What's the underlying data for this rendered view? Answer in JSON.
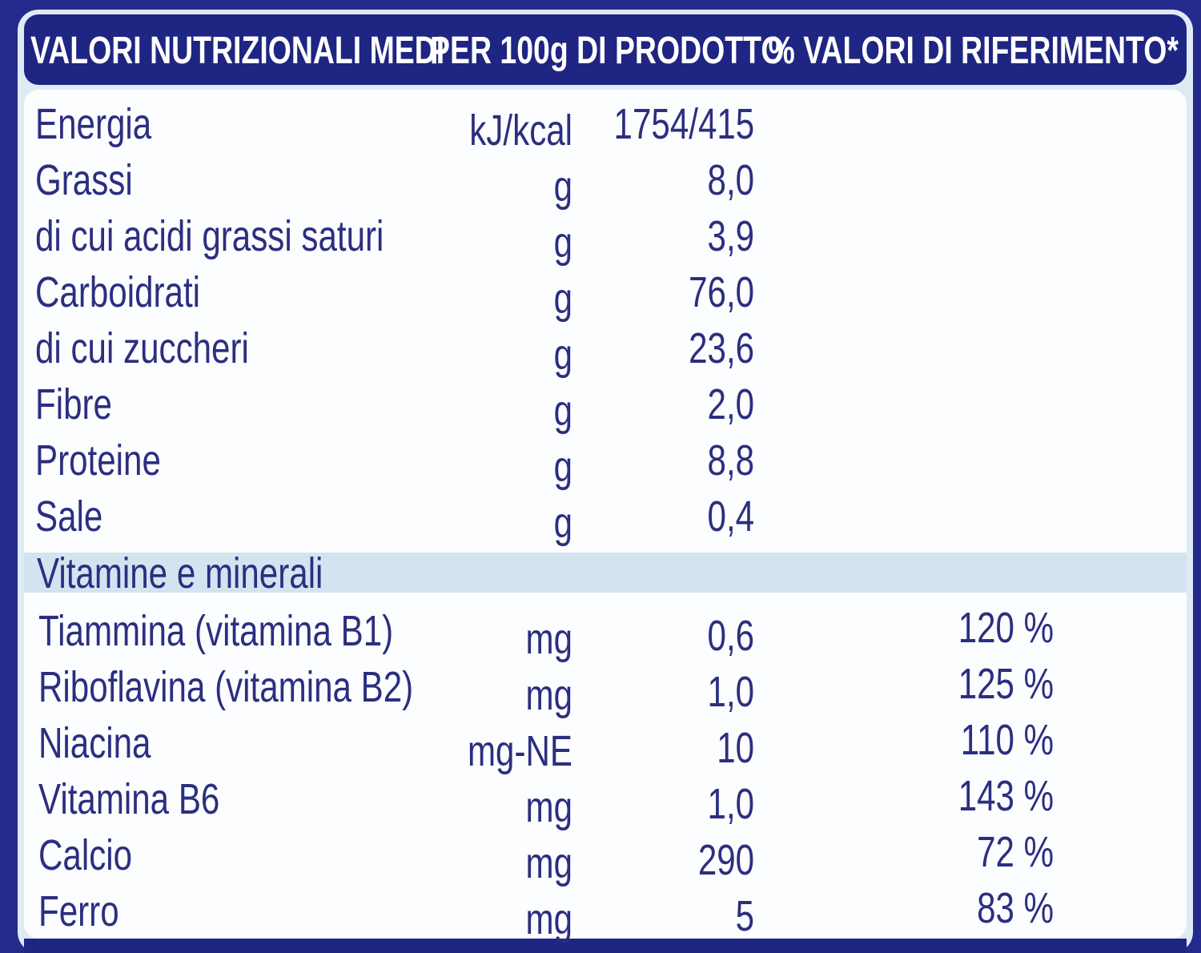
{
  "table": {
    "header": [
      "VALORI NUTRIZIONALI MEDI",
      "PER 100g DI PRODOTTO",
      "% VALORI DI RIFERIMENTO*"
    ],
    "rows": [
      [
        "Energia",
        "kJ/kcal",
        "1754/415"
      ],
      [
        "Grassi",
        "g",
        "8,0"
      ],
      [
        "di cui acidi grassi saturi",
        "g",
        "3,9"
      ],
      [
        "Carboidrati",
        "g",
        "76,0"
      ],
      [
        "di cui zuccheri",
        "g",
        "23,6"
      ],
      [
        "Fibre",
        "g",
        "2,0"
      ],
      [
        "Proteine",
        "g",
        "8,8"
      ],
      [
        "Sale",
        "g",
        "0,4"
      ]
    ],
    "section": "Vitamine e minerali",
    "vitamins": [
      [
        "Tiammina (vitamina B1)",
        "mg",
        "0,6",
        "120 %"
      ],
      [
        "Riboflavina (vitamina B2)",
        "mg",
        "1,0",
        "125 %"
      ],
      [
        "Niacina",
        "mg-NE",
        "10",
        "110 %"
      ],
      [
        "Vitamina B6",
        "mg",
        "1,0",
        "143 %"
      ],
      [
        "Calcio",
        "mg",
        "290",
        "72 %"
      ],
      [
        "Ferro",
        "mg",
        "5",
        "83 %"
      ]
    ]
  }
}
